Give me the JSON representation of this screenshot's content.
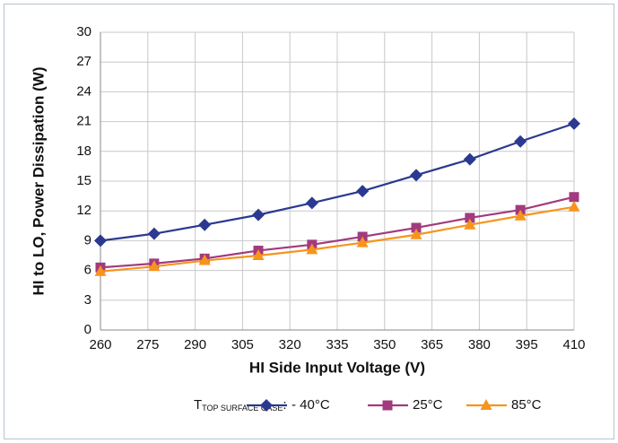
{
  "chart_data": {
    "type": "line",
    "x_label": "HI Side Input Voltage (V)",
    "y_label": "HI to LO, Power Dissipation (W)",
    "legend_title": {
      "main": "T",
      "subscript": "TOP SURFACE CASE",
      "suffix": ":"
    },
    "x": [
      260,
      277,
      293,
      310,
      327,
      343,
      360,
      377,
      393,
      410
    ],
    "xlim": [
      260,
      410
    ],
    "xticks": [
      260,
      275,
      290,
      305,
      320,
      335,
      350,
      365,
      380,
      395,
      410
    ],
    "ylim": [
      0,
      30
    ],
    "yticks": [
      0,
      3,
      6,
      9,
      12,
      15,
      18,
      21,
      24,
      27,
      30
    ],
    "grid": true,
    "legend": "bottom",
    "series": [
      {
        "name": "- 40°C",
        "color": "#2b3990",
        "marker": "diamond",
        "values": [
          9.0,
          9.7,
          10.6,
          11.6,
          12.8,
          14.0,
          15.6,
          17.2,
          19.0,
          20.8
        ]
      },
      {
        "name": "25°C",
        "color": "#a23a7e",
        "marker": "square",
        "values": [
          6.3,
          6.7,
          7.2,
          8.0,
          8.6,
          9.4,
          10.3,
          11.3,
          12.1,
          13.4
        ]
      },
      {
        "name": "85°C",
        "color": "#f7941d",
        "marker": "triangle",
        "values": [
          5.9,
          6.4,
          7.0,
          7.5,
          8.1,
          8.8,
          9.6,
          10.6,
          11.5,
          12.4
        ]
      }
    ]
  }
}
